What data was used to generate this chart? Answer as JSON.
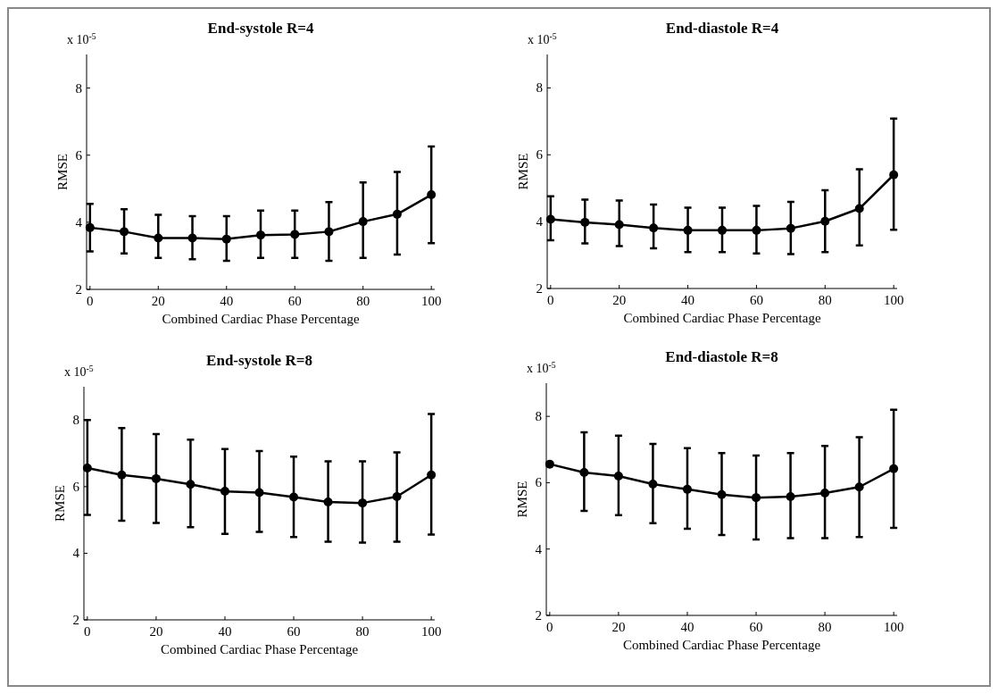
{
  "chart_data": [
    {
      "type": "line",
      "title": "End-systole R=4",
      "xlabel": "Combined Cardiac Phase Percentage",
      "ylabel": "RMSE",
      "annotations": [
        "x 10$^{-5}$"
      ],
      "x": [
        0,
        10,
        20,
        30,
        40,
        50,
        60,
        70,
        80,
        90,
        100
      ],
      "xlim": [
        -1,
        101
      ],
      "xticks": [
        0,
        20,
        40,
        60,
        80,
        100
      ],
      "ylim": [
        2,
        9
      ],
      "yticks": [
        2,
        4,
        6,
        8
      ],
      "marker": "circle",
      "line_style": "solid",
      "series": [
        {
          "color": "#000000",
          "values": [
            3.84,
            3.72,
            3.53,
            3.53,
            3.5,
            3.62,
            3.64,
            3.72,
            4.02,
            4.24,
            4.82
          ],
          "errors": [
            [
              3.13,
              4.55
            ],
            [
              3.07,
              4.39
            ],
            [
              2.94,
              4.22
            ],
            [
              2.9,
              4.18
            ],
            [
              2.85,
              4.18
            ],
            [
              2.94,
              4.35
            ],
            [
              2.94,
              4.35
            ],
            [
              2.85,
              4.6
            ],
            [
              2.94,
              5.19
            ],
            [
              3.04,
              5.5
            ],
            [
              3.38,
              6.26
            ]
          ]
        }
      ]
    },
    {
      "type": "line",
      "title": "End-diastole R=4",
      "xlabel": "Combined Cardiac Phase Percentage",
      "ylabel": "RMSE",
      "annotations": [
        "x 10$^{-5}$"
      ],
      "x": [
        0,
        10,
        20,
        30,
        40,
        50,
        60,
        70,
        80,
        90,
        100
      ],
      "xlim": [
        -1,
        101
      ],
      "xticks": [
        0,
        20,
        40,
        60,
        80,
        100
      ],
      "ylim": [
        2,
        9
      ],
      "yticks": [
        2,
        4,
        6,
        8
      ],
      "marker": "circle",
      "line_style": "solid",
      "series": [
        {
          "color": "#000000",
          "values": [
            4.07,
            3.98,
            3.91,
            3.81,
            3.74,
            3.74,
            3.74,
            3.8,
            4.01,
            4.39,
            5.4
          ],
          "errors": [
            [
              3.44,
              4.76
            ],
            [
              3.35,
              4.66
            ],
            [
              3.27,
              4.63
            ],
            [
              3.2,
              4.51
            ],
            [
              3.09,
              4.42
            ],
            [
              3.09,
              4.42
            ],
            [
              3.05,
              4.47
            ],
            [
              3.03,
              4.59
            ],
            [
              3.09,
              4.94
            ],
            [
              3.29,
              5.57
            ],
            [
              3.76,
              7.08
            ]
          ]
        }
      ]
    },
    {
      "type": "line",
      "title": "End-systole R=8",
      "xlabel": "Combined Cardiac Phase Percentage",
      "ylabel": "RMSE",
      "annotations": [
        "x 10$^{-5}$"
      ],
      "x": [
        0,
        10,
        20,
        30,
        40,
        50,
        60,
        70,
        80,
        90,
        100
      ],
      "xlim": [
        -1,
        101
      ],
      "xticks": [
        0,
        20,
        40,
        60,
        80,
        100
      ],
      "ylim": [
        2,
        9
      ],
      "yticks": [
        2,
        4,
        6,
        8
      ],
      "marker": "circle",
      "line_style": "solid",
      "series": [
        {
          "color": "#000000",
          "values": [
            6.56,
            6.35,
            6.24,
            6.07,
            5.86,
            5.82,
            5.69,
            5.54,
            5.51,
            5.7,
            6.35
          ],
          "errors": [
            [
              5.15,
              8.0
            ],
            [
              4.98,
              7.76
            ],
            [
              4.91,
              7.58
            ],
            [
              4.78,
              7.41
            ],
            [
              4.58,
              7.13
            ],
            [
              4.64,
              7.07
            ],
            [
              4.49,
              6.9
            ],
            [
              4.35,
              6.76
            ],
            [
              4.32,
              6.76
            ],
            [
              4.35,
              7.03
            ],
            [
              4.56,
              8.18
            ]
          ]
        }
      ]
    },
    {
      "type": "line",
      "title": "End-diastole R=8",
      "xlabel": "Combined Cardiac Phase Percentage",
      "ylabel": "RMSE",
      "annotations": [
        "x 10$^{-5}$"
      ],
      "x": [
        0,
        10,
        20,
        30,
        40,
        50,
        60,
        70,
        80,
        90,
        100
      ],
      "xlim": [
        -1,
        101
      ],
      "xticks": [
        0,
        20,
        40,
        60,
        80,
        100
      ],
      "ylim": [
        2,
        9
      ],
      "yticks": [
        2,
        4,
        6,
        8
      ],
      "marker": "circle",
      "line_style": "solid",
      "series": [
        {
          "color": "#000000",
          "values": [
            6.56,
            6.31,
            6.2,
            5.96,
            5.8,
            5.64,
            5.55,
            5.58,
            5.69,
            5.87,
            6.42
          ],
          "errors": [
            null,
            [
              5.15,
              7.52
            ],
            [
              5.02,
              7.42
            ],
            [
              4.78,
              7.17
            ],
            [
              4.61,
              7.04
            ],
            [
              4.42,
              6.89
            ],
            [
              4.29,
              6.82
            ],
            [
              4.33,
              6.89
            ],
            [
              4.33,
              7.11
            ],
            [
              4.36,
              7.37
            ],
            [
              4.64,
              8.2
            ]
          ]
        }
      ]
    }
  ]
}
